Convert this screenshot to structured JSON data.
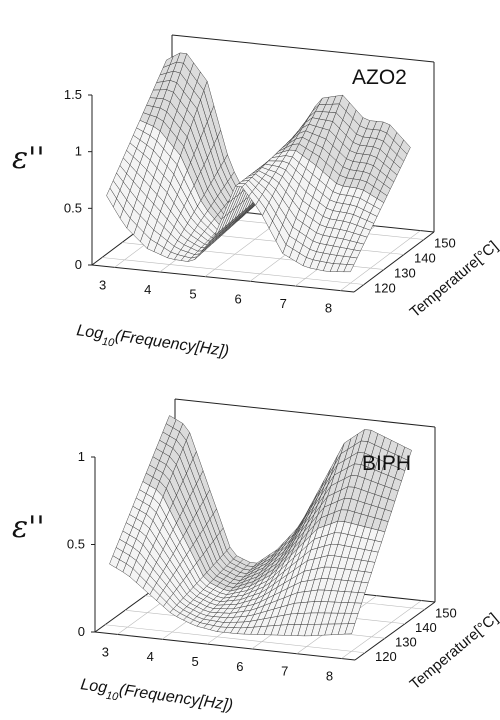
{
  "chart_data": [
    {
      "type": "surface",
      "title": "AZO2",
      "xlabel": "Log",
      "xlabel_sub": "10",
      "xlabel_rest": "(Frequency[Hz])",
      "ylabel": "Temperature[°C]",
      "zlabel": "ε''",
      "x_ticks": [
        "3",
        "4",
        "5",
        "6",
        "7",
        "8"
      ],
      "y_ticks": [
        "120",
        "130",
        "140",
        "150"
      ],
      "z_ticks": [
        "0",
        "0.5",
        "1",
        "1.5"
      ],
      "xlim": [
        2.5,
        8.3
      ],
      "ylim": [
        115,
        155
      ],
      "zlim": [
        0,
        1.5
      ],
      "surface_profile": {
        "x": [
          2.6,
          3.0,
          3.5,
          4.0,
          4.5,
          5.0,
          5.5,
          6.0,
          6.5,
          7.0,
          7.5,
          8.0
        ],
        "z_at_120C": [
          0.55,
          0.3,
          0.12,
          0.05,
          0.04,
          0.3,
          0.8,
          0.55,
          0.2,
          0.1,
          0.08,
          0.1
        ],
        "z_at_150C": [
          1.35,
          1.45,
          1.2,
          0.5,
          0.12,
          0.35,
          0.8,
          1.15,
          1.2,
          1.0,
          1.0,
          0.8
        ]
      }
    },
    {
      "type": "surface",
      "title": "BIPH",
      "xlabel": "Log",
      "xlabel_sub": "10",
      "xlabel_rest": "(Frequency[Hz])",
      "ylabel": "Temperature[°C]",
      "zlabel": "ε''",
      "x_ticks": [
        "3",
        "4",
        "5",
        "6",
        "7",
        "8"
      ],
      "y_ticks": [
        "120",
        "130",
        "140",
        "150"
      ],
      "z_ticks": [
        "0",
        "0.5",
        "1"
      ],
      "xlim": [
        2.5,
        8.3
      ],
      "ylim": [
        115,
        155
      ],
      "zlim": [
        0,
        1.0
      ],
      "surface_profile": {
        "x": [
          2.6,
          3.0,
          3.5,
          4.0,
          4.5,
          5.0,
          5.5,
          6.0,
          6.5,
          7.0,
          7.5,
          8.0
        ],
        "z_at_120C": [
          0.35,
          0.3,
          0.2,
          0.1,
          0.05,
          0.03,
          0.03,
          0.04,
          0.05,
          0.06,
          0.08,
          0.1
        ],
        "z_at_150C": [
          0.95,
          0.9,
          0.55,
          0.2,
          0.15,
          0.25,
          0.4,
          0.65,
          0.9,
          1.0,
          0.95,
          0.9
        ]
      }
    }
  ]
}
